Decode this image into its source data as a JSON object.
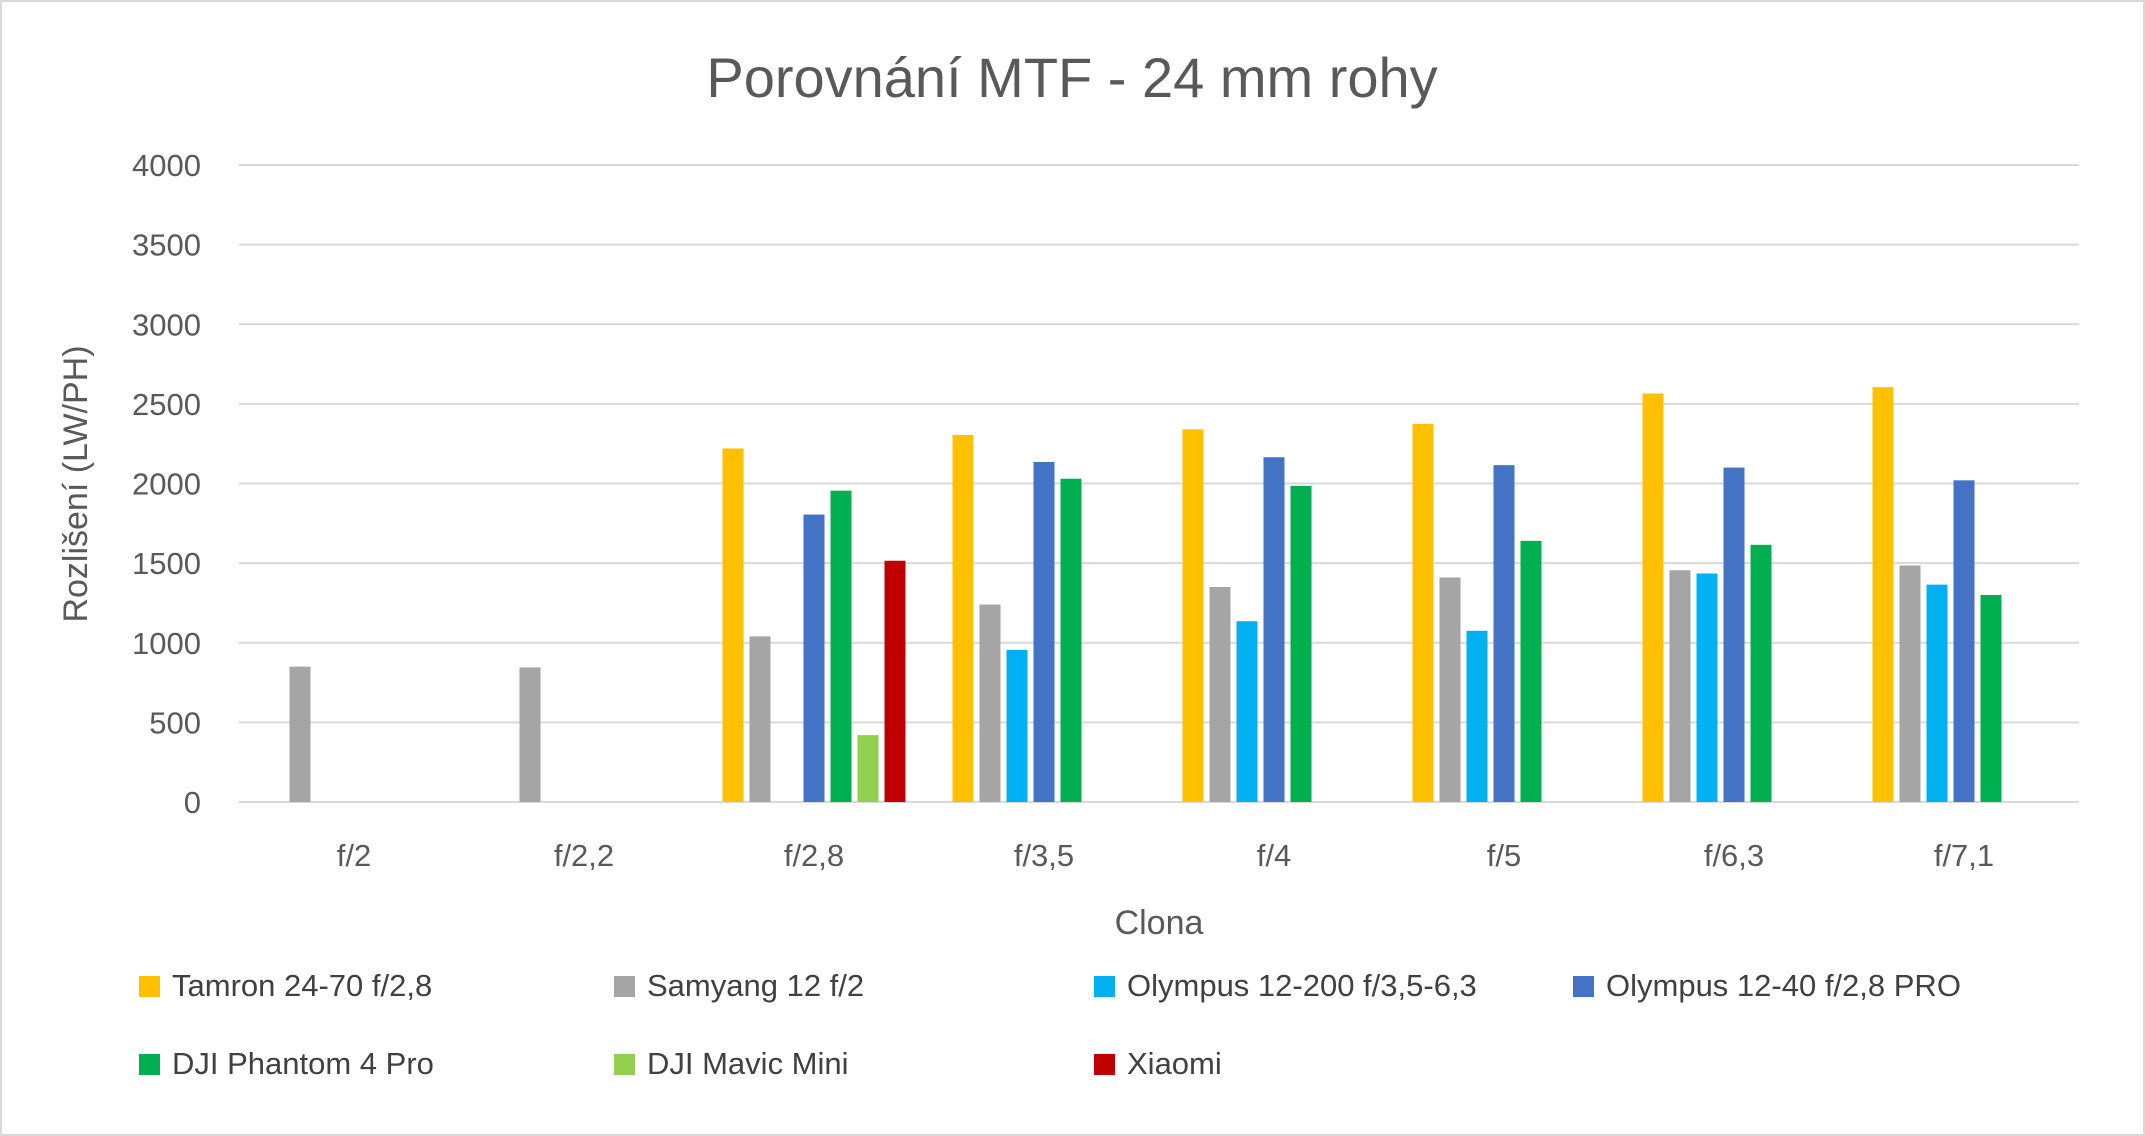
{
  "chart_data": {
    "type": "bar",
    "title": "Porovnání MTF - 24 mm rohy",
    "xlabel": "Clona",
    "ylabel": "Rozlišení (LW/PH)",
    "ylim": [
      0,
      4000
    ],
    "yticks": [
      0,
      500,
      1000,
      1500,
      2000,
      2500,
      3000,
      3500,
      4000
    ],
    "grid": true,
    "legend_position": "bottom",
    "categories": [
      "f/2",
      "f/2,2",
      "f/2,8",
      "f/3,5",
      "f/4",
      "f/5",
      "f/6,3",
      "f/7,1"
    ],
    "series": [
      {
        "name": "Tamron 24-70 f/2,8",
        "color": "#FFC000",
        "values": [
          null,
          null,
          2220,
          2305,
          2340,
          2375,
          2565,
          2605
        ]
      },
      {
        "name": "Samyang 12 f/2",
        "color": "#A5A5A5",
        "values": [
          850,
          845,
          1040,
          1240,
          1350,
          1410,
          1455,
          1485
        ]
      },
      {
        "name": "Olympus 12-200 f/3,5-6,3",
        "color": "#00B0F0",
        "values": [
          null,
          null,
          null,
          955,
          1135,
          1075,
          1435,
          1365
        ]
      },
      {
        "name": "Olympus 12-40 f/2,8 PRO",
        "color": "#4472C4",
        "values": [
          null,
          null,
          1805,
          2135,
          2165,
          2115,
          2100,
          2020
        ]
      },
      {
        "name": "DJI Phantom 4 Pro",
        "color": "#00B050",
        "values": [
          null,
          null,
          1955,
          2030,
          1985,
          1640,
          1615,
          1300
        ]
      },
      {
        "name": "DJI Mavic Mini",
        "color": "#92D050",
        "values": [
          null,
          null,
          420,
          null,
          null,
          null,
          null,
          null
        ]
      },
      {
        "name": "Xiaomi",
        "color": "#C00000",
        "values": [
          null,
          null,
          1515,
          null,
          null,
          null,
          null,
          null
        ]
      }
    ]
  }
}
